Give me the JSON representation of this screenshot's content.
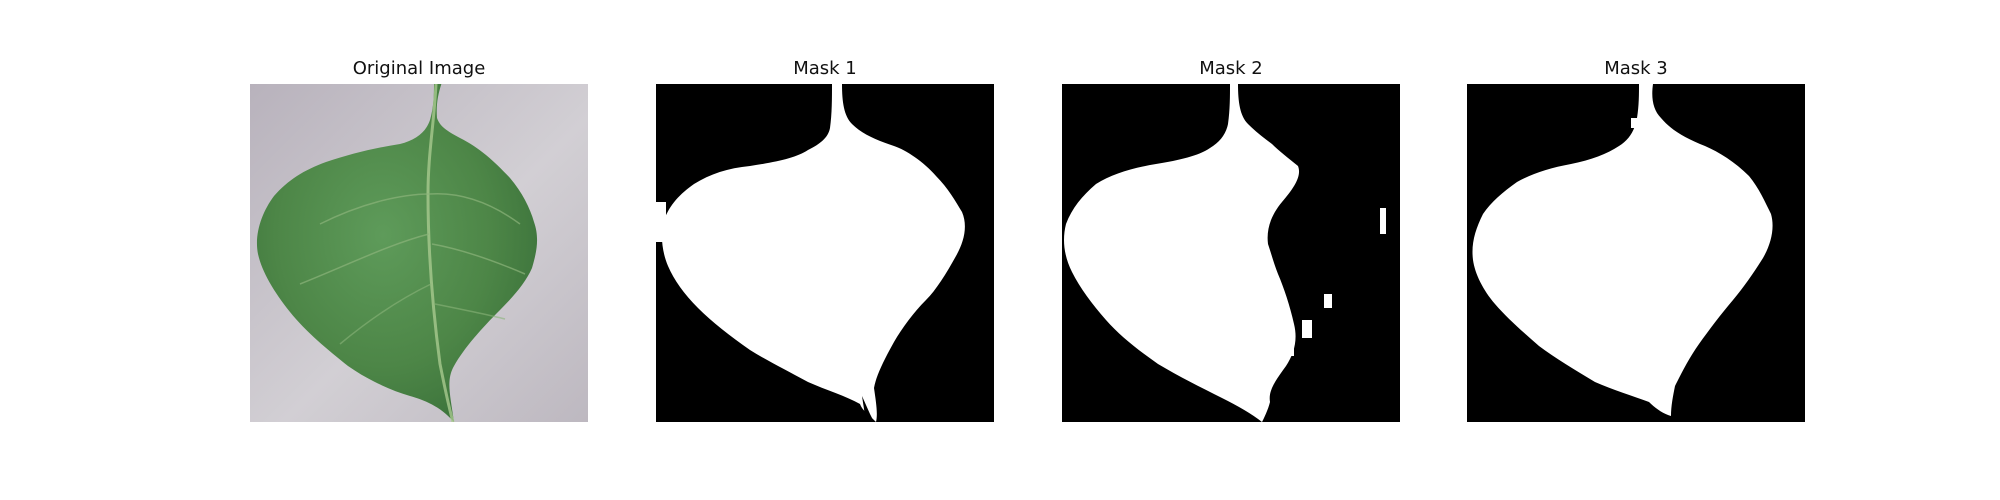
{
  "figure": {
    "panels": [
      {
        "title": "Original Image",
        "image": "green-leaf-photo"
      },
      {
        "title": "Mask 1",
        "image": "binary-leaf-mask"
      },
      {
        "title": "Mask 2",
        "image": "binary-leaf-mask"
      },
      {
        "title": "Mask 3",
        "image": "binary-leaf-mask"
      }
    ]
  },
  "colors": {
    "mask_background": "#000000",
    "mask_foreground": "#ffffff",
    "photo_background": "#c8c4cb",
    "leaf_green": "#4f8a4d"
  }
}
